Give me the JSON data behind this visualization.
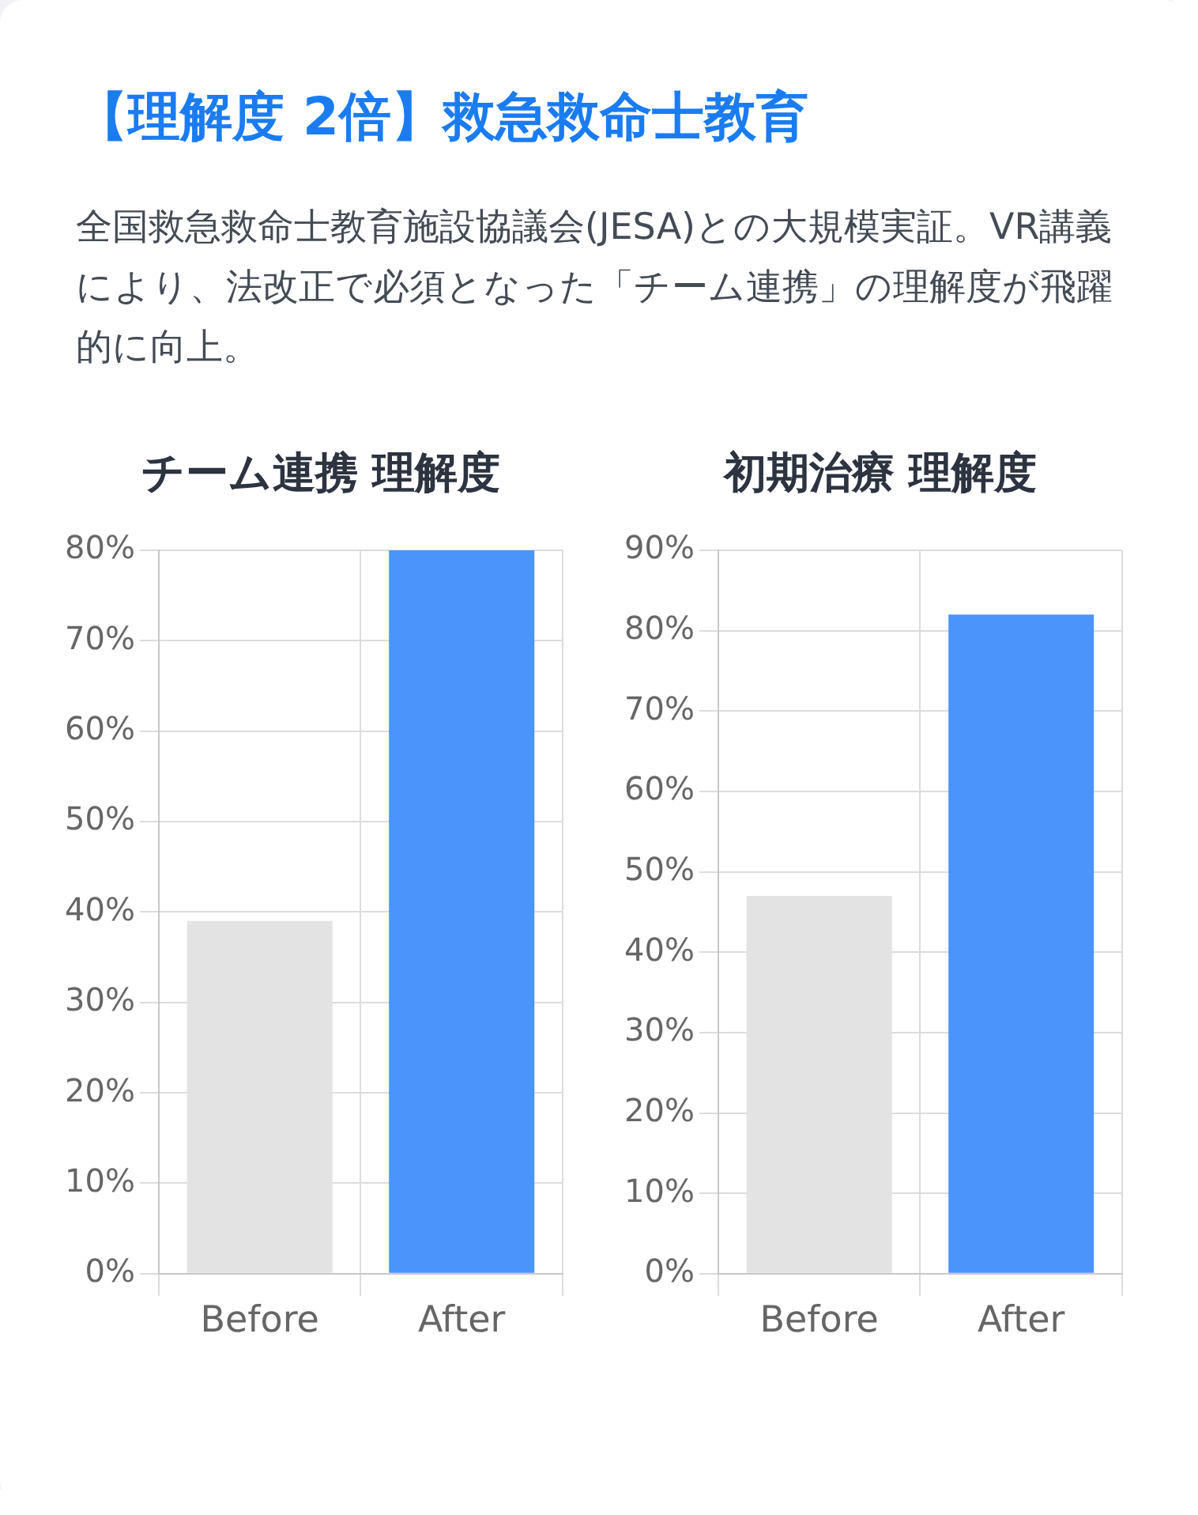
{
  "chart_data": [
    {
      "type": "other",
      "title": "【理解度 2倍】救急救命士教育",
      "subtitle": "全国救急救命士教育施設協議会(JESA)との大規模実証。VR講義により、法改正で必須となった「チーム連携」の理解度が飛躍的に向上。"
    },
    {
      "type": "bar",
      "title": "チーム連携 理解度",
      "categories": [
        "Before",
        "After"
      ],
      "values": [
        39,
        80
      ],
      "colors": [
        "#e3e3e3",
        "#4a94fc"
      ],
      "ylim": [
        0,
        80
      ],
      "yticks": [
        {
          "value": 0,
          "label": "0%"
        },
        {
          "value": 10,
          "label": "10%"
        },
        {
          "value": 20,
          "label": "20%"
        },
        {
          "value": 30,
          "label": "30%"
        },
        {
          "value": 40,
          "label": "40%"
        },
        {
          "value": 50,
          "label": "50%"
        },
        {
          "value": 60,
          "label": "60%"
        },
        {
          "value": 70,
          "label": "70%"
        },
        {
          "value": 80,
          "label": "80%"
        }
      ],
      "grid": true,
      "legend": false
    },
    {
      "type": "bar",
      "title": "初期治療 理解度",
      "categories": [
        "Before",
        "After"
      ],
      "values": [
        47,
        82
      ],
      "colors": [
        "#e3e3e3",
        "#4a94fc"
      ],
      "ylim": [
        0,
        90
      ],
      "yticks": [
        {
          "value": 0,
          "label": "0%"
        },
        {
          "value": 10,
          "label": "10%"
        },
        {
          "value": 20,
          "label": "20%"
        },
        {
          "value": 30,
          "label": "30%"
        },
        {
          "value": 40,
          "label": "40%"
        },
        {
          "value": 50,
          "label": "50%"
        },
        {
          "value": 60,
          "label": "60%"
        },
        {
          "value": 70,
          "label": "70%"
        },
        {
          "value": 80,
          "label": "80%"
        },
        {
          "value": 90,
          "label": "90%"
        }
      ],
      "grid": true,
      "legend": false
    }
  ]
}
